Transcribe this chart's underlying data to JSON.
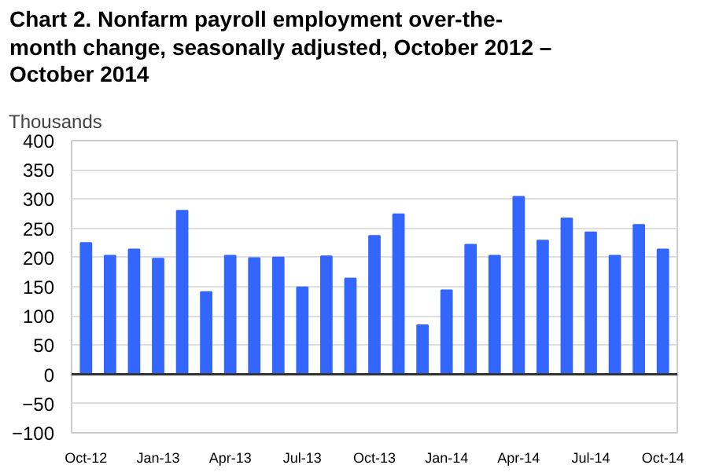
{
  "chart_data": {
    "type": "bar",
    "title": "Chart 2. Nonfarm payroll employment over-the-month change, seasonally adjusted, October 2012 – October 2014",
    "ylabel": "Thousands",
    "categories": [
      "Oct-12",
      null,
      null,
      "Jan-13",
      null,
      null,
      "Apr-13",
      null,
      null,
      "Jul-13",
      null,
      null,
      "Oct-13",
      null,
      null,
      "Jan-14",
      null,
      null,
      "Apr-14",
      null,
      null,
      "Jul-14",
      null,
      null,
      "Oct-14"
    ],
    "values": [
      225,
      203,
      214,
      198,
      280,
      141,
      203,
      199,
      200,
      149,
      202,
      164,
      237,
      274,
      84,
      144,
      222,
      203,
      304,
      229,
      267,
      243,
      203,
      256,
      214
    ],
    "color": "#3366ff",
    "ylim": [
      -100,
      400
    ],
    "yticks": [
      -100,
      -50,
      0,
      50,
      100,
      150,
      200,
      250,
      300,
      350,
      400
    ],
    "grid": "y",
    "ref_lines": [
      {
        "axis": "y",
        "value": 0,
        "color": "#333333"
      }
    ]
  }
}
